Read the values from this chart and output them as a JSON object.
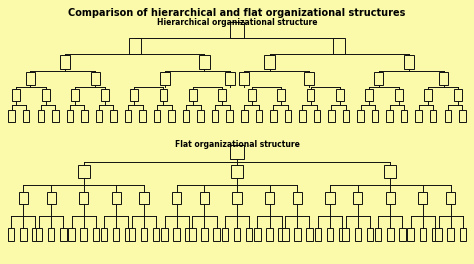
{
  "title": "Comparison of hierarchical and flat organizational structures",
  "title_fontsize": 7,
  "title_fontweight": "bold",
  "hier_label": "Hierarchical organizational structure",
  "flat_label": "Flat organizational structure",
  "bg_color": "#FAFAAA",
  "box_edge": "#111111",
  "border_color": "#8B6914",
  "line_color": "#111111",
  "label_fontsize": 5.5,
  "label_fontweight": "bold"
}
